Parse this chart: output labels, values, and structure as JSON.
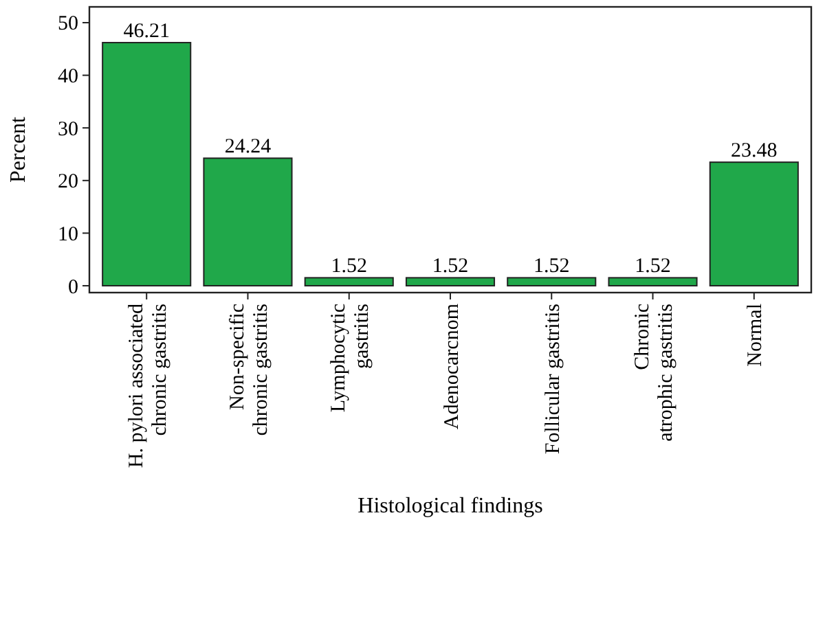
{
  "chart_data": {
    "type": "bar",
    "xlabel": "Histological findings",
    "ylabel": "Percent",
    "categories": [
      "H. pylori associated\nchronic gastritis",
      "Non-specific\nchronic gastritis",
      "Lymphocytic\ngastritis",
      "Adenocarcnom",
      "Follicular gastritis",
      "Chronic\natrophic gastritis",
      "Normal"
    ],
    "values": [
      46.21,
      24.24,
      1.52,
      1.52,
      1.52,
      1.52,
      23.48
    ],
    "color": "#20a84a",
    "ylim": [
      -1.3,
      53
    ],
    "yticks": [
      0,
      10,
      20,
      30,
      40,
      50
    ],
    "grid": false,
    "data_labels": true
  }
}
